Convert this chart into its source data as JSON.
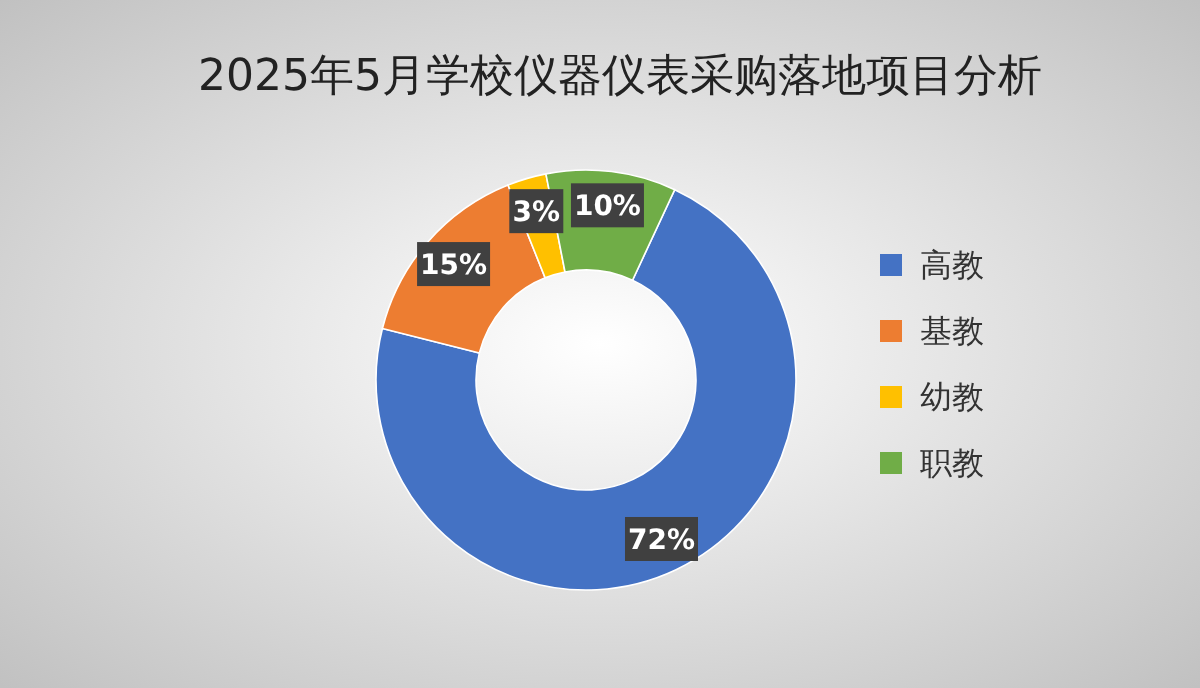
{
  "chart_data": {
    "type": "donut",
    "title": "2025年5月学校仪器仪表采购落地项目分析",
    "categories": [
      "高教",
      "基教",
      "幼教",
      "职教"
    ],
    "values": [
      72,
      15,
      3,
      10
    ],
    "colors": [
      "#4472c4",
      "#ed7d31",
      "#ffc000",
      "#70ad47"
    ],
    "value_labels": [
      "72%",
      "15%",
      "3%",
      "10%"
    ],
    "legend": "right"
  }
}
